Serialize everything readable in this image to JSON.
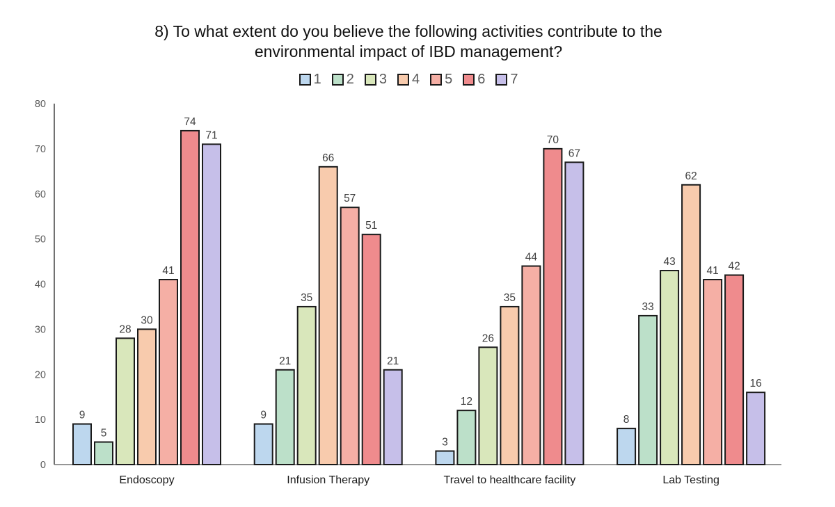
{
  "chart_data": {
    "type": "bar",
    "title": "8) To what extent do you believe the following activities contribute to the environmental impact of IBD management?",
    "categories": [
      "Endoscopy",
      "Infusion Therapy",
      "Travel to healthcare facility",
      "Lab Testing"
    ],
    "series": [
      {
        "name": "1",
        "color": "#BDD7EE",
        "values": [
          9,
          9,
          3,
          8
        ]
      },
      {
        "name": "2",
        "color": "#BCE0C9",
        "values": [
          5,
          21,
          12,
          33
        ]
      },
      {
        "name": "3",
        "color": "#D9E7BB",
        "values": [
          28,
          35,
          26,
          43
        ]
      },
      {
        "name": "4",
        "color": "#F8CBAD",
        "values": [
          30,
          66,
          35,
          62
        ]
      },
      {
        "name": "5",
        "color": "#F5AFA5",
        "values": [
          41,
          57,
          44,
          41
        ]
      },
      {
        "name": "6",
        "color": "#EF8B8D",
        "values": [
          74,
          51,
          70,
          42
        ]
      },
      {
        "name": "7",
        "color": "#C6BFE9",
        "values": [
          71,
          21,
          67,
          16
        ]
      }
    ],
    "xlabel": "",
    "ylabel": "",
    "ylim": [
      0,
      80
    ],
    "yticks": [
      0,
      10,
      20,
      30,
      40,
      50,
      60,
      70,
      80
    ],
    "grid": false,
    "legend_position": "top",
    "value_labels_shown": true,
    "colors": {
      "bar_border": "#1a1a1a",
      "y_axis": "#4d4d4d",
      "x_axis": "#737373",
      "tick_label": "#595959",
      "value_label": "#404040",
      "category_label": "#1a1a1a",
      "title": "#111111",
      "background": "#ffffff"
    }
  }
}
